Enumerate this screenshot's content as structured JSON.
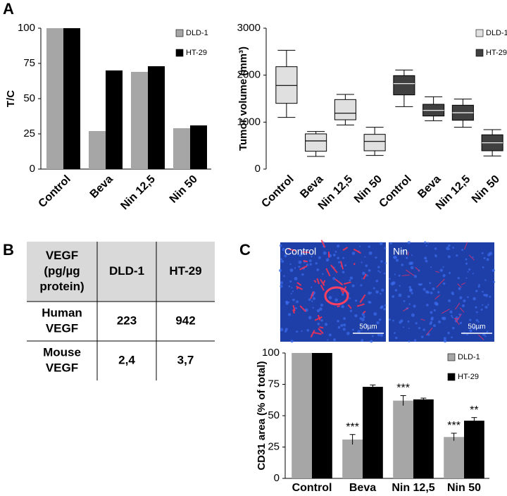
{
  "panel_labels": [
    "A",
    "B",
    "C"
  ],
  "chart_data": [
    {
      "type": "bar",
      "y_label": "T/C",
      "categories": [
        "Control",
        "Beva",
        "Nin 12,5",
        "Nin 50"
      ],
      "series": [
        {
          "name": "DLD-1",
          "color": "#a6a6a6",
          "values": [
            100,
            27,
            69,
            29
          ]
        },
        {
          "name": "HT-29",
          "color": "#000000",
          "values": [
            100,
            70,
            73,
            31
          ]
        }
      ],
      "ylim": [
        0,
        100
      ],
      "yticks": [
        0,
        25,
        50,
        75,
        100
      ],
      "grid": false
    },
    {
      "type": "box",
      "y_label": "Tumor volume (mm³)",
      "categories": [
        "Control",
        "Beva",
        "Nin 12,5",
        "Nin 50",
        "Control",
        "Beva",
        "Nin 12,5",
        "Nin 50"
      ],
      "series": [
        {
          "name": "DLD-1",
          "color": "#e0e0e0",
          "boxes": [
            {
              "min": 1100,
              "q1": 1400,
              "median": 1780,
              "q3": 2180,
              "max": 2530
            },
            {
              "min": 270,
              "q1": 380,
              "median": 600,
              "q3": 750,
              "max": 800
            },
            {
              "min": 940,
              "q1": 1050,
              "median": 1190,
              "q3": 1480,
              "max": 1590
            },
            {
              "min": 290,
              "q1": 390,
              "median": 590,
              "q3": 740,
              "max": 890
            }
          ]
        },
        {
          "name": "HT-29",
          "color": "#404040",
          "boxes": [
            {
              "min": 1330,
              "q1": 1580,
              "median": 1820,
              "q3": 1990,
              "max": 2110
            },
            {
              "min": 1030,
              "q1": 1130,
              "median": 1250,
              "q3": 1380,
              "max": 1540
            },
            {
              "min": 890,
              "q1": 1040,
              "median": 1200,
              "q3": 1360,
              "max": 1490
            },
            {
              "min": 280,
              "q1": 390,
              "median": 560,
              "q3": 730,
              "max": 840
            }
          ]
        }
      ],
      "ylim": [
        0,
        3000
      ],
      "yticks": [
        0,
        1000,
        2000,
        3000
      ],
      "grid": false
    },
    {
      "type": "bar",
      "y_label": "CD31 area (% of total)",
      "categories": [
        "Control",
        "Beva",
        "Nin 12,5",
        "Nin 50"
      ],
      "series": [
        {
          "name": "DLD-1",
          "color": "#a6a6a6",
          "values": [
            100,
            31,
            62,
            33
          ],
          "errors": [
            null,
            4,
            4,
            3
          ],
          "annotations": [
            null,
            "***",
            "***",
            "***"
          ]
        },
        {
          "name": "HT-29",
          "color": "#000000",
          "values": [
            100,
            73,
            63,
            46
          ],
          "errors": [
            null,
            1.5,
            1,
            2.5
          ],
          "annotations": [
            null,
            null,
            null,
            "**"
          ]
        }
      ],
      "ylim": [
        0,
        100
      ],
      "yticks": [
        0,
        25,
        50,
        75,
        100
      ],
      "grid": false
    }
  ],
  "table": {
    "rows": [
      [
        [
          "VEGF",
          "(pg/µg",
          "protein)"
        ],
        [
          "DLD-1"
        ],
        [
          "HT-29"
        ]
      ],
      [
        [
          "Human",
          "VEGF"
        ],
        [
          "223"
        ],
        [
          "942"
        ]
      ],
      [
        [
          "Mouse",
          "VEGF"
        ],
        [
          "2,4"
        ],
        [
          "3,7"
        ]
      ]
    ]
  },
  "images": [
    {
      "label": "Control",
      "scale": "50µm"
    },
    {
      "label": "Nin",
      "scale": "50µm"
    }
  ]
}
